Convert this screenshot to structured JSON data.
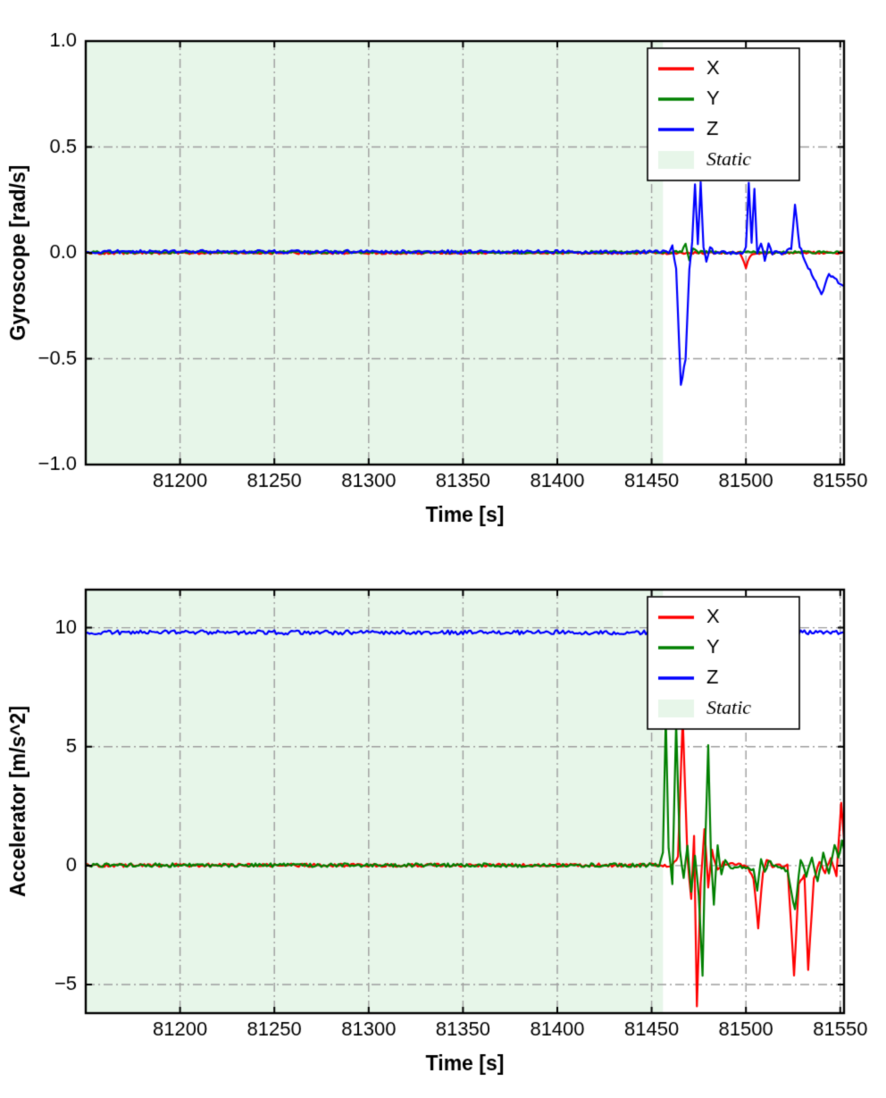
{
  "figure": {
    "background": "#ffffff"
  },
  "chart_data": [
    {
      "type": "line",
      "title": "",
      "xlabel": "Time [s]",
      "ylabel": "Gyroscope [rad/s]",
      "xlim": [
        81150,
        81552
      ],
      "ylim": [
        -1.0,
        1.0
      ],
      "xticks": [
        81200,
        81250,
        81300,
        81350,
        81400,
        81450,
        81500,
        81550
      ],
      "xtick_labels": [
        "81200",
        "81250",
        "81300",
        "81350",
        "81400",
        "81450",
        "81500",
        "81550"
      ],
      "yticks": [
        -1.0,
        -0.5,
        0.0,
        0.5,
        1.0
      ],
      "ytick_labels": [
        "−1.0",
        "−0.5",
        "0.0",
        "0.5",
        "1.0"
      ],
      "grid": true,
      "grid_color": "#9e9e9e",
      "legend_position": "upper-right",
      "static_region": {
        "label": "Static",
        "x0": 81150,
        "x1": 81456,
        "color": "#e7f6e9"
      },
      "series": [
        {
          "name": "X",
          "color": "#ff0000",
          "noise": 0.006,
          "points": [
            [
              81150,
              0
            ],
            [
              81496,
              0
            ],
            [
              81498,
              -0.02
            ],
            [
              81500,
              -0.07
            ],
            [
              81502,
              -0.02
            ],
            [
              81504,
              0
            ],
            [
              81552,
              0
            ]
          ]
        },
        {
          "name": "Y",
          "color": "#008000",
          "noise": 0.006,
          "points": [
            [
              81150,
              0.003
            ],
            [
              81466,
              0.003
            ],
            [
              81468,
              0.04
            ],
            [
              81470,
              -0.03
            ],
            [
              81472,
              0.02
            ],
            [
              81475,
              0.003
            ],
            [
              81552,
              0.003
            ]
          ]
        },
        {
          "name": "Z",
          "color": "#0000ff",
          "noise": 0.008,
          "points": [
            [
              81150,
              0.005
            ],
            [
              81459,
              0.005
            ],
            [
              81461,
              0.04
            ],
            [
              81463,
              -0.08
            ],
            [
              81465.5,
              -0.63
            ],
            [
              81468,
              -0.5
            ],
            [
              81470,
              -0.08
            ],
            [
              81471.5,
              0.05
            ],
            [
              81473,
              0.33
            ],
            [
              81474.5,
              0.04
            ],
            [
              81476,
              0.33
            ],
            [
              81477.5,
              0.02
            ],
            [
              81479,
              -0.04
            ],
            [
              81481,
              0.03
            ],
            [
              81483,
              0
            ],
            [
              81498,
              0
            ],
            [
              81500,
              0.02
            ],
            [
              81501.5,
              0.33
            ],
            [
              81503,
              0.05
            ],
            [
              81504.5,
              0.3
            ],
            [
              81506,
              0
            ],
            [
              81508,
              0.05
            ],
            [
              81510,
              -0.03
            ],
            [
              81512,
              0.04
            ],
            [
              81514,
              0
            ],
            [
              81520,
              0
            ],
            [
              81524,
              0.02
            ],
            [
              81526,
              0.23
            ],
            [
              81528.5,
              0.03
            ],
            [
              81532,
              -0.05
            ],
            [
              81536,
              -0.12
            ],
            [
              81540,
              -0.2
            ],
            [
              81544,
              -0.1
            ],
            [
              81548,
              -0.13
            ],
            [
              81552,
              -0.16
            ]
          ]
        }
      ]
    },
    {
      "type": "line",
      "title": "",
      "xlabel": "Time [s]",
      "ylabel": "Accelerator [m/s^2]",
      "xlim": [
        81150,
        81552
      ],
      "ylim": [
        -6.2,
        11.6
      ],
      "xticks": [
        81200,
        81250,
        81300,
        81350,
        81400,
        81450,
        81500,
        81550
      ],
      "xtick_labels": [
        "81200",
        "81250",
        "81300",
        "81350",
        "81400",
        "81450",
        "81500",
        "81550"
      ],
      "yticks": [
        -5,
        0,
        5,
        10
      ],
      "ytick_labels": [
        "−5",
        "0",
        "5",
        "10"
      ],
      "grid": true,
      "grid_color": "#9e9e9e",
      "legend_position": "upper-right",
      "static_region": {
        "label": "Static",
        "x0": 81150,
        "x1": 81456,
        "color": "#e7f6e9"
      },
      "series": [
        {
          "name": "X",
          "color": "#ff0000",
          "noise": 0.07,
          "points": [
            [
              81150,
              0.02
            ],
            [
              81461,
              0.02
            ],
            [
              81464,
              0.4
            ],
            [
              81466.5,
              6.2
            ],
            [
              81469,
              0.3
            ],
            [
              81471,
              -1.4
            ],
            [
              81472.5,
              1.2
            ],
            [
              81474,
              -5.9
            ],
            [
              81476,
              -0.8
            ],
            [
              81478,
              1.6
            ],
            [
              81480,
              -0.9
            ],
            [
              81482,
              0.6
            ],
            [
              81485,
              -0.2
            ],
            [
              81488,
              0.1
            ],
            [
              81500,
              0
            ],
            [
              81504,
              -0.5
            ],
            [
              81506.5,
              -2.6
            ],
            [
              81509,
              -0.3
            ],
            [
              81511,
              0.3
            ],
            [
              81514,
              0
            ],
            [
              81522,
              0
            ],
            [
              81525.5,
              -4.6
            ],
            [
              81528,
              -0.8
            ],
            [
              81531,
              -0.4
            ],
            [
              81533,
              -4.4
            ],
            [
              81536,
              -0.6
            ],
            [
              81539,
              0.2
            ],
            [
              81542,
              -0.3
            ],
            [
              81545,
              0.3
            ],
            [
              81548,
              -0.4
            ],
            [
              81550.5,
              2.6
            ],
            [
              81552,
              1.2
            ]
          ]
        },
        {
          "name": "Y",
          "color": "#008000",
          "noise": 0.08,
          "points": [
            [
              81150,
              0.02
            ],
            [
              81454,
              0.02
            ],
            [
              81456,
              0.6
            ],
            [
              81457.5,
              6.3
            ],
            [
              81459,
              0.8
            ],
            [
              81461,
              -0.7
            ],
            [
              81463,
              5.9
            ],
            [
              81465,
              0.6
            ],
            [
              81467,
              -0.6
            ],
            [
              81469,
              0.9
            ],
            [
              81471,
              -1.1
            ],
            [
              81473,
              0.4
            ],
            [
              81475,
              -1.2
            ],
            [
              81477,
              -4.7
            ],
            [
              81478.5,
              1.0
            ],
            [
              81480,
              5.1
            ],
            [
              81481.5,
              0.3
            ],
            [
              81483,
              -1.6
            ],
            [
              81485,
              0.9
            ],
            [
              81487,
              -0.4
            ],
            [
              81489,
              0.3
            ],
            [
              81492,
              -0.1
            ],
            [
              81495,
              0
            ],
            [
              81504,
              -0.2
            ],
            [
              81506,
              -1.0
            ],
            [
              81508,
              0.3
            ],
            [
              81510,
              -0.3
            ],
            [
              81512,
              0.2
            ],
            [
              81516,
              0
            ],
            [
              81522,
              -0.2
            ],
            [
              81526,
              -1.9
            ],
            [
              81529,
              0.3
            ],
            [
              81532,
              -0.5
            ],
            [
              81535,
              0.4
            ],
            [
              81538,
              -0.7
            ],
            [
              81541,
              0.5
            ],
            [
              81544,
              -0.3
            ],
            [
              81547,
              0.9
            ],
            [
              81549,
              0.3
            ],
            [
              81551,
              1.1
            ],
            [
              81552,
              0.7
            ]
          ]
        },
        {
          "name": "Z",
          "color": "#0000ff",
          "noise": 0.09,
          "points": [
            [
              81150,
              9.8
            ],
            [
              81552,
              9.8
            ]
          ]
        }
      ]
    }
  ]
}
